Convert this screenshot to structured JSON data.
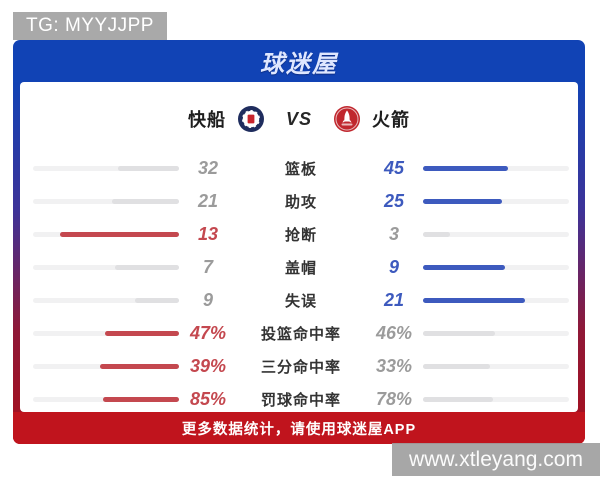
{
  "badge": "TG: MYYJJPP",
  "header": {
    "logo": "球迷屋"
  },
  "match": {
    "home": "快船",
    "away": "火箭",
    "vs": "VS"
  },
  "stats": {
    "rows": [
      {
        "label": "篮板",
        "left": "32",
        "right": "45",
        "winner": "right"
      },
      {
        "label": "助攻",
        "left": "21",
        "right": "25",
        "winner": "right"
      },
      {
        "label": "抢断",
        "left": "13",
        "right": "3",
        "winner": "left"
      },
      {
        "label": "盖帽",
        "left": "7",
        "right": "9",
        "winner": "right"
      },
      {
        "label": "失误",
        "left": "9",
        "right": "21",
        "winner": "right"
      },
      {
        "label": "投篮命中率",
        "left": "47%",
        "right": "46%",
        "winner": "left"
      },
      {
        "label": "三分命中率",
        "left": "39%",
        "right": "33%",
        "winner": "left"
      },
      {
        "label": "罚球命中率",
        "left": "85%",
        "right": "78%",
        "winner": "left"
      }
    ]
  },
  "footer": {
    "text": "更多数据统计，请使用球迷屋APP"
  },
  "watermark": {
    "text": "www.xtleyang.com"
  },
  "colors": {
    "header_blue": "#1143b5",
    "footer_red": "#c0141d",
    "home_accent": "#c4484f",
    "away_accent": "#3d5abe",
    "muted_value": "#9b9b9b",
    "bar_track": "#f1f1f2",
    "bar_muted": "#e0e0e2"
  }
}
